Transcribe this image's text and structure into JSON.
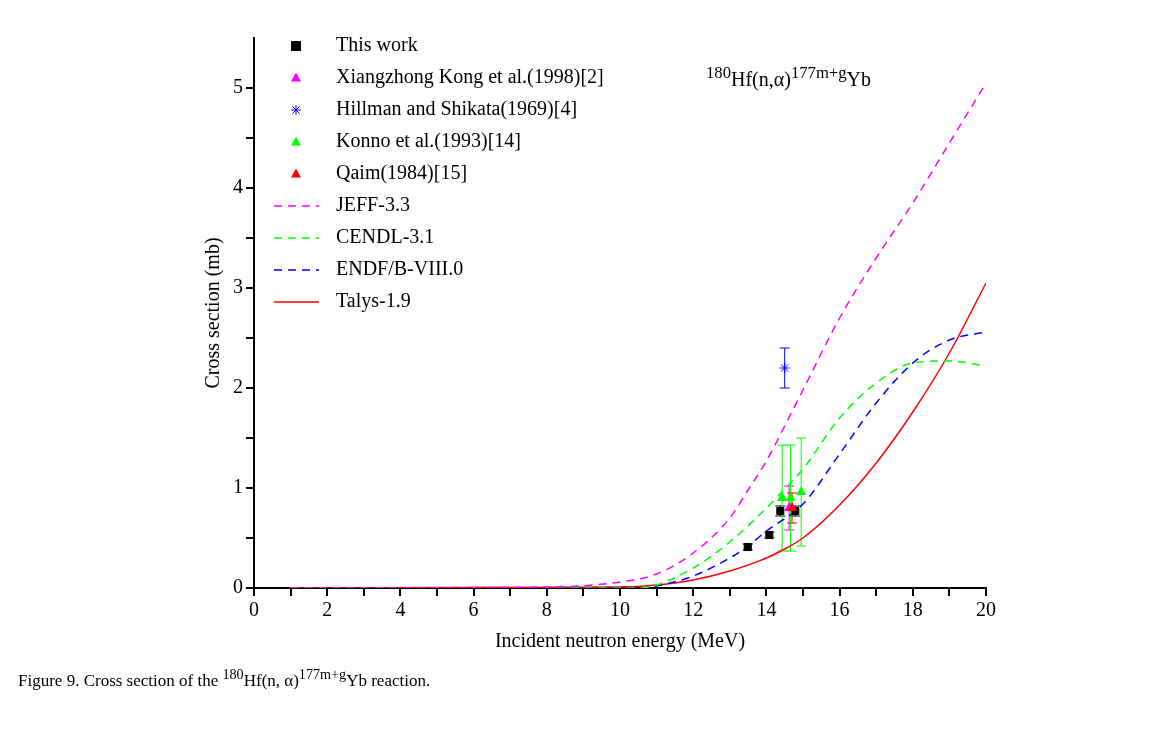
{
  "chart_data": {
    "type": "scatter",
    "xlabel": "Incident neutron energy (MeV)",
    "ylabel": "Cross section (mb)",
    "xlim": [
      0,
      20
    ],
    "xticks": [
      0,
      {
        "value": 1,
        "label": null
      },
      2,
      {
        "value": 3,
        "label": null
      },
      4,
      {
        "value": 5,
        "label": null
      },
      6,
      {
        "value": 7,
        "label": null
      },
      8,
      {
        "value": 9,
        "label": null
      },
      10,
      {
        "value": 11,
        "label": null
      },
      12,
      {
        "value": 13,
        "label": null
      },
      14,
      {
        "value": 15,
        "label": null
      },
      16,
      {
        "value": 17,
        "label": null
      },
      18,
      {
        "value": 19,
        "label": null
      },
      20
    ],
    "ylim": [
      0,
      5.5
    ],
    "yticks": [
      0,
      {
        "value": 0.5,
        "label": null
      },
      1,
      {
        "value": 1.5,
        "label": null
      },
      2,
      {
        "value": 2.5,
        "label": null
      },
      3,
      {
        "value": 3.5,
        "label": null
      },
      4,
      {
        "value": 4.5,
        "label": null
      },
      5
    ],
    "grid": false,
    "legend": "top left",
    "annotations": [
      "$^{180}$Hf(n,α)$^{177m+g}$Yb",
      "Figure 9. Cross section of the $^{180}$Hf(n, α)$^{177m+g}$Yb reaction."
    ],
    "series": [
      {
        "name": "This work",
        "type": "scatter",
        "marker": "square",
        "color": "#000000",
        "x": [
          13.49,
          14.08,
          14.38,
          14.79
        ],
        "values": [
          0.41,
          0.53,
          0.77,
          0.77
        ],
        "errors": [
          0.03,
          0.03,
          0.05,
          0.05
        ]
      },
      {
        "name": "Xiangzhong Kong et al.(1998)[2]",
        "type": "scatter",
        "marker": "triangle",
        "color": "#ff00ff",
        "x": [
          14.62
        ],
        "values": [
          0.8
        ],
        "errors": [
          0.22
        ]
      },
      {
        "name": "Hillman and Shikata(1969)[4]",
        "type": "scatter",
        "marker": "cross",
        "color": "#0000ff",
        "x": [
          14.5
        ],
        "values": [
          2.2
        ],
        "errors": [
          0.2
        ]
      },
      {
        "name": "Konno et al.(1993)[14]",
        "type": "scatter",
        "marker": "triangle",
        "color": "#00ff00",
        "x": [
          14.43,
          14.66,
          14.95
        ],
        "values": [
          0.9,
          0.9,
          0.96
        ],
        "errors": [
          0.53,
          0.53,
          0.54
        ]
      },
      {
        "name": "Qaim(1984)[15]",
        "type": "scatter",
        "marker": "triangle",
        "color": "#ff0000",
        "x": [
          14.7
        ],
        "values": [
          0.8
        ],
        "errors": [
          0.15
        ]
      },
      {
        "name": "JEFF-3.3",
        "type": "line",
        "line_style": "dashed",
        "color": "#ff00ff",
        "x": [
          1,
          8,
          10,
          11,
          12,
          13,
          13.5,
          14,
          14.5,
          15,
          16,
          17,
          18,
          19,
          20
        ],
        "values": [
          0,
          0.01,
          0.06,
          0.14,
          0.35,
          0.7,
          0.98,
          1.27,
          1.62,
          1.98,
          2.7,
          3.3,
          3.85,
          4.45,
          5.05
        ]
      },
      {
        "name": "CENDL-3.1",
        "type": "line",
        "line_style": "dashed",
        "color": "#00ff00",
        "x": [
          1,
          10.5,
          11,
          12,
          13,
          14,
          14.5,
          15,
          16,
          17,
          18,
          19,
          20
        ],
        "values": [
          0,
          0,
          0.03,
          0.2,
          0.46,
          0.8,
          0.99,
          1.19,
          1.7,
          2.05,
          2.25,
          2.27,
          2.22
        ]
      },
      {
        "name": "ENDF/B-VIII.0",
        "type": "line",
        "line_style": "dashed",
        "color": "#0000ff",
        "x": [
          1,
          10.5,
          11,
          12,
          13,
          13.5,
          14,
          15,
          16,
          17,
          18,
          19,
          20
        ],
        "values": [
          0,
          0,
          0.02,
          0.12,
          0.3,
          0.42,
          0.57,
          0.84,
          1.34,
          1.85,
          2.25,
          2.48,
          2.56
        ]
      },
      {
        "name": "Talys-1.9",
        "type": "line",
        "line_style": "solid",
        "color": "#ff0000",
        "x": [
          1,
          10,
          11,
          12,
          13,
          14,
          14.5,
          15,
          16,
          17,
          18,
          19,
          20
        ],
        "values": [
          0,
          0.01,
          0.03,
          0.08,
          0.17,
          0.3,
          0.39,
          0.5,
          0.83,
          1.25,
          1.76,
          2.35,
          3.05
        ]
      }
    ]
  }
}
